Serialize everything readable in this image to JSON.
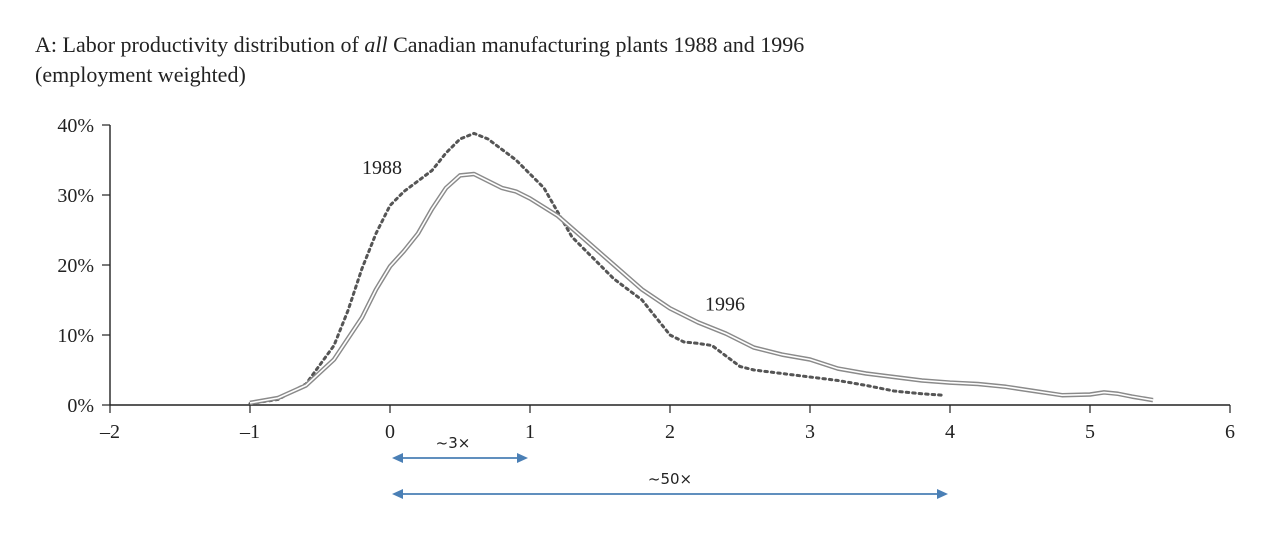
{
  "title": {
    "prefix": "A: Labor productivity distribution of ",
    "emphasis": "all",
    "suffix": " Canadian manufacturing plants 1988 and 1996",
    "line2": "(employment weighted)"
  },
  "colors": {
    "axis": "#222222",
    "series_1988": "#555555",
    "series_1996": "#8a8a8a",
    "annotation": "#4a7fb5"
  },
  "chart_data": {
    "type": "line",
    "title": "A: Labor productivity distribution of all Canadian manufacturing plants 1988 and 1996 (employment weighted)",
    "xlim": [
      -2,
      6
    ],
    "ylim": [
      0,
      40
    ],
    "x_ticks": [
      -2,
      -1,
      0,
      1,
      2,
      3,
      4,
      5,
      6
    ],
    "x_tick_labels": [
      "–2",
      "–1",
      "0",
      "1",
      "2",
      "3",
      "4",
      "5",
      "6"
    ],
    "y_ticks": [
      0,
      10,
      20,
      30,
      40
    ],
    "y_tick_labels": [
      "0%",
      "10%",
      "20%",
      "30%",
      "40%"
    ],
    "grid": false,
    "series": [
      {
        "name": "1988",
        "style": "dotted",
        "label_at": [
          -0.2,
          33
        ],
        "x": [
          -1.0,
          -0.8,
          -0.6,
          -0.4,
          -0.3,
          -0.2,
          -0.1,
          0.0,
          0.1,
          0.2,
          0.3,
          0.4,
          0.5,
          0.6,
          0.7,
          0.8,
          0.9,
          1.0,
          1.1,
          1.2,
          1.3,
          1.4,
          1.5,
          1.6,
          1.7,
          1.8,
          1.9,
          2.0,
          2.1,
          2.2,
          2.3,
          2.4,
          2.5,
          2.6,
          2.8,
          3.0,
          3.2,
          3.4,
          3.6,
          3.8,
          3.95
        ],
        "values": [
          0.2,
          0.8,
          3.0,
          8.5,
          13.5,
          19.5,
          24.5,
          28.5,
          30.5,
          32.0,
          33.5,
          36.0,
          38.0,
          38.8,
          38.0,
          36.5,
          35.0,
          33.0,
          31.0,
          27.5,
          24.0,
          22.0,
          20.0,
          18.0,
          16.5,
          15.0,
          12.5,
          10.0,
          9.0,
          8.8,
          8.5,
          7.0,
          5.5,
          5.0,
          4.5,
          4.0,
          3.5,
          2.8,
          2.0,
          1.6,
          1.4
        ]
      },
      {
        "name": "1996",
        "style": "double",
        "label_at": [
          2.25,
          13.5
        ],
        "x": [
          -1.0,
          -0.8,
          -0.6,
          -0.4,
          -0.3,
          -0.2,
          -0.1,
          0.0,
          0.1,
          0.2,
          0.3,
          0.4,
          0.5,
          0.6,
          0.7,
          0.8,
          0.9,
          1.0,
          1.2,
          1.4,
          1.6,
          1.8,
          2.0,
          2.2,
          2.4,
          2.6,
          2.8,
          3.0,
          3.2,
          3.4,
          3.6,
          3.8,
          4.0,
          4.2,
          4.4,
          4.6,
          4.8,
          5.0,
          5.1,
          5.2,
          5.3,
          5.45
        ],
        "values": [
          0.3,
          1.0,
          2.8,
          6.5,
          9.5,
          12.5,
          16.5,
          19.8,
          22.0,
          24.5,
          28.0,
          31.0,
          32.8,
          33.0,
          32.0,
          31.0,
          30.5,
          29.5,
          27.0,
          23.5,
          20.0,
          16.5,
          13.8,
          11.8,
          10.2,
          8.2,
          7.2,
          6.5,
          5.2,
          4.5,
          4.0,
          3.5,
          3.2,
          3.0,
          2.6,
          2.0,
          1.4,
          1.5,
          1.8,
          1.6,
          1.2,
          0.7
        ]
      }
    ],
    "annotations": [
      {
        "label": "~3×",
        "from": 0,
        "to": 1,
        "label_x": 0.45,
        "row": 1
      },
      {
        "label": "~50×",
        "from": 0,
        "to": 4,
        "label_x": 2.0,
        "row": 2
      }
    ]
  }
}
